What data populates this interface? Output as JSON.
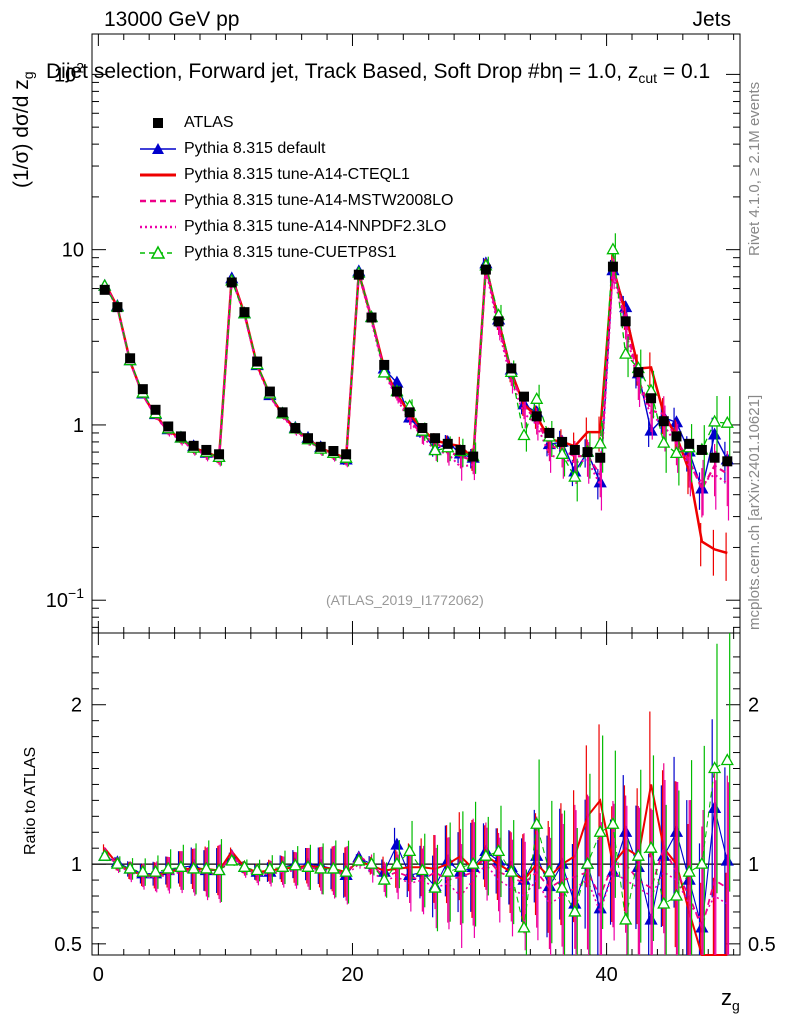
{
  "header": {
    "left": "13000 GeV pp",
    "right": "Jets",
    "title": "Dijet selection, Forward jet, Track Based, Soft Drop #b",
    "title_tail": "η = 1.0, z",
    "title_sub": "cut",
    "title_end": " = 0.1",
    "ylabel": "(1/σ) dσ/d z",
    "ylabel_sub": "g",
    "ratio_ylabel": "Ratio to ATLAS",
    "xlabel": "z",
    "xlabel_sub": "g",
    "analysis_id": "(ATLAS_2019_I1772062)",
    "side_top": "Rivet 4.1.0, ≥ 2.1M events",
    "side_bottom": "mcplots.cern.ch [arXiv:2401.10621]"
  },
  "legend": [
    {
      "label": "ATLAS",
      "color": "#000000",
      "marker": "square",
      "line": "none"
    },
    {
      "label": "Pythia 8.315 default",
      "color": "#0000cc",
      "marker": "triangle",
      "line": "solid"
    },
    {
      "label": "Pythia 8.315 tune-A14-CTEQL1",
      "color": "#ee0000",
      "marker": "none",
      "line": "solid"
    },
    {
      "label": "Pythia 8.315 tune-A14-MSTW2008LO",
      "color": "#ee0088",
      "marker": "none",
      "line": "dashed"
    },
    {
      "label": "Pythia 8.315 tune-A14-NNPDF2.3LO",
      "color": "#ee00aa",
      "marker": "none",
      "line": "dotted"
    },
    {
      "label": "Pythia 8.315 tune-CUETP8S1",
      "color": "#00bb00",
      "marker": "triangle-open",
      "line": "dashed"
    }
  ],
  "chart_data": {
    "type": "scatter",
    "x_ticks": [
      0,
      20,
      40
    ],
    "x_tick_labels": [
      "0",
      "20",
      "40"
    ],
    "xlim": [
      -0.5,
      50.5
    ],
    "main_ylim": [
      0.065,
      170
    ],
    "main_y_ticks": [
      {
        "value": 0.1,
        "base": "10",
        "exp": "−1"
      },
      {
        "value": 1,
        "base": "1",
        "exp": ""
      },
      {
        "value": 10,
        "base": "10",
        "exp": ""
      },
      {
        "value": 100,
        "base": "10",
        "exp": "2"
      }
    ],
    "ratio_ylim": [
      0.43,
      2.45
    ],
    "ratio_y_ticks": [
      {
        "value": 0.5,
        "label": "0.5"
      },
      {
        "value": 1,
        "label": "1"
      },
      {
        "value": 2,
        "label": "2"
      }
    ],
    "x": [
      0.5,
      1.5,
      2.5,
      3.5,
      4.5,
      5.5,
      6.5,
      7.5,
      8.5,
      9.5,
      10.5,
      11.5,
      12.5,
      13.5,
      14.5,
      15.5,
      16.5,
      17.5,
      18.5,
      19.5,
      20.5,
      21.5,
      22.5,
      23.5,
      24.5,
      25.5,
      26.5,
      27.5,
      28.5,
      29.5,
      30.5,
      31.5,
      32.5,
      33.5,
      34.5,
      35.5,
      36.5,
      37.5,
      38.5,
      39.5,
      40.5,
      41.5,
      42.5,
      43.5,
      44.5,
      45.5,
      46.5,
      47.5,
      48.5,
      49.5
    ],
    "atlas": [
      5.9,
      4.7,
      2.4,
      1.6,
      1.22,
      0.98,
      0.86,
      0.76,
      0.72,
      0.68,
      6.5,
      4.4,
      2.3,
      1.55,
      1.18,
      0.96,
      0.84,
      0.75,
      0.71,
      0.68,
      7.2,
      4.1,
      2.2,
      1.55,
      1.18,
      0.96,
      0.84,
      0.78,
      0.72,
      0.66,
      7.7,
      3.9,
      2.1,
      1.45,
      1.12,
      0.9,
      0.8,
      0.72,
      0.7,
      0.65,
      8.0,
      3.9,
      2.0,
      1.42,
      1.05,
      0.86,
      0.78,
      0.72,
      0.65,
      0.62
    ],
    "series": [
      {
        "name": "Pythia 8.315 default",
        "ratio": [
          1.05,
          1.01,
          0.97,
          0.94,
          0.94,
          0.96,
          0.98,
          0.99,
          0.96,
          0.96,
          1.05,
          0.98,
          0.95,
          0.95,
          0.98,
          1.0,
          1.0,
          0.99,
          0.97,
          0.93,
          1.04,
          1.0,
          0.95,
          1.12,
          0.93,
          0.95,
          0.86,
          1.02,
          0.95,
          0.98,
          1.08,
          1.02,
          0.98,
          0.9,
          1.05,
          0.86,
          1.0,
          0.75,
          1.0,
          0.72,
          0.95,
          1.2,
          0.98,
          0.65,
          1.05,
          1.2,
          0.9,
          0.6,
          1.35,
          1.02
        ]
      },
      {
        "name": "Pythia 8.315 tune-A14-CTEQL1",
        "ratio": [
          1.1,
          1.0,
          0.96,
          0.93,
          0.93,
          0.95,
          0.97,
          0.97,
          0.97,
          0.96,
          1.08,
          0.98,
          0.95,
          0.96,
          0.97,
          0.98,
          0.99,
          0.98,
          0.97,
          0.95,
          1.02,
          0.99,
          0.96,
          0.97,
          0.98,
          0.98,
          0.97,
          1.0,
          1.05,
          0.97,
          1.05,
          1.0,
          0.95,
          0.9,
          1.0,
          0.92,
          1.0,
          1.05,
          1.3,
          1.4,
          1.0,
          1.1,
          1.05,
          1.5,
          1.1,
          1.0,
          0.7,
          0.3,
          0.3,
          0.3
        ]
      },
      {
        "name": "Pythia 8.315 tune-A14-MSTW2008LO",
        "ratio": [
          1.08,
          1.0,
          0.96,
          0.93,
          0.92,
          0.94,
          0.96,
          0.96,
          0.95,
          0.95,
          1.06,
          0.97,
          0.94,
          0.95,
          0.96,
          0.97,
          0.98,
          0.97,
          0.96,
          0.94,
          1.05,
          1.0,
          0.92,
          0.95,
          0.92,
          0.9,
          0.95,
          0.9,
          0.92,
          0.95,
          1.05,
          0.95,
          0.92,
          0.88,
          0.95,
          0.85,
          0.9,
          0.92,
          0.95,
          0.8,
          1.0,
          1.0,
          0.9,
          0.85,
          1.1,
          0.95,
          0.8,
          0.6,
          0.9,
          0.85
        ]
      },
      {
        "name": "Pythia 8.315 tune-A14-NNPDF2.3LO",
        "ratio": [
          1.07,
          0.99,
          0.95,
          0.92,
          0.92,
          0.93,
          0.95,
          0.95,
          0.94,
          0.94,
          1.05,
          0.96,
          0.93,
          0.94,
          0.95,
          0.96,
          0.97,
          0.96,
          0.95,
          0.93,
          1.0,
          0.95,
          0.9,
          0.92,
          0.88,
          0.9,
          0.85,
          0.88,
          0.8,
          0.9,
          1.0,
          0.9,
          0.85,
          0.8,
          0.9,
          0.75,
          0.8,
          0.85,
          0.9,
          0.7,
          0.95,
          0.9,
          0.85,
          0.8,
          0.95,
          0.9,
          0.75,
          0.65,
          0.8,
          0.75
        ]
      },
      {
        "name": "Pythia 8.315 tune-CUETP8S1",
        "ratio": [
          1.05,
          1.0,
          0.97,
          0.95,
          0.95,
          0.97,
          0.98,
          0.97,
          0.97,
          0.96,
          1.02,
          0.98,
          0.96,
          0.97,
          0.98,
          0.99,
          0.98,
          0.97,
          0.97,
          0.95,
          1.02,
          1.0,
          0.9,
          1.0,
          1.08,
          0.96,
          0.85,
          0.95,
          0.98,
          1.0,
          1.05,
          1.08,
          0.95,
          0.6,
          1.25,
          0.95,
          0.85,
          0.7,
          1.0,
          1.2,
          1.25,
          0.65,
          1.05,
          1.1,
          0.75,
          0.8,
          0.95,
          1.0,
          1.6,
          1.65
        ]
      }
    ]
  }
}
